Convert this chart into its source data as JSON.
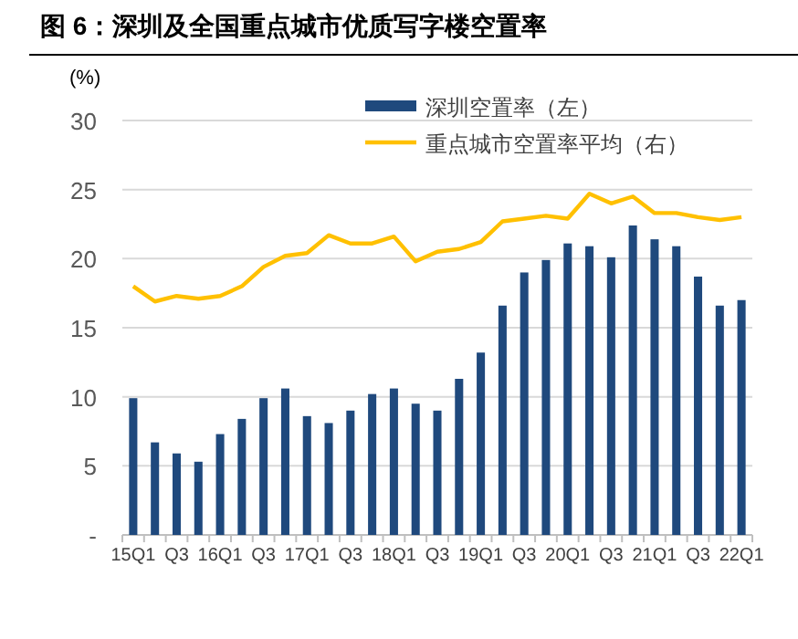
{
  "chart_data": {
    "type": "bar",
    "title": "图 6：深圳及全国重点城市优质写字楼空置率",
    "ylabel": "(%)",
    "categories": [
      "15Q1",
      null,
      "Q3",
      null,
      "16Q1",
      null,
      "Q3",
      null,
      "17Q1",
      null,
      "Q3",
      null,
      "18Q1",
      null,
      "Q3",
      null,
      "19Q1",
      null,
      "Q3",
      null,
      "20Q1",
      null,
      "Q3",
      null,
      "21Q1",
      null,
      "Q3",
      null,
      "22Q1"
    ],
    "series": [
      {
        "name": "深圳空置率（左）",
        "color": "#1f497d",
        "values": [
          9.9,
          6.7,
          5.9,
          5.3,
          7.3,
          8.4,
          9.9,
          10.6,
          8.6,
          8.1,
          9.0,
          10.2,
          10.6,
          9.5,
          9.0,
          11.3,
          13.2,
          16.6,
          19.0,
          19.9,
          21.1,
          20.9,
          20.1,
          22.4,
          21.4,
          20.9,
          18.7,
          16.6,
          17.0
        ]
      },
      {
        "name": "重点城市空置率平均（右）",
        "type": "line",
        "color": "#ffc000",
        "values": [
          18.0,
          16.9,
          17.3,
          17.1,
          17.3,
          18.0,
          19.4,
          20.2,
          20.4,
          21.7,
          21.1,
          21.1,
          21.6,
          19.8,
          20.5,
          20.7,
          21.2,
          22.7,
          22.9,
          23.1,
          22.9,
          24.7,
          24.0,
          24.5,
          23.3,
          23.3,
          23.0,
          22.8,
          23.0
        ]
      }
    ],
    "ylim": [
      0,
      30
    ],
    "yticks": [
      {
        "value": 0,
        "label": "-"
      },
      5,
      10,
      15,
      20,
      25,
      30
    ],
    "grid": "y",
    "legend": "top right",
    "marker": "none"
  }
}
